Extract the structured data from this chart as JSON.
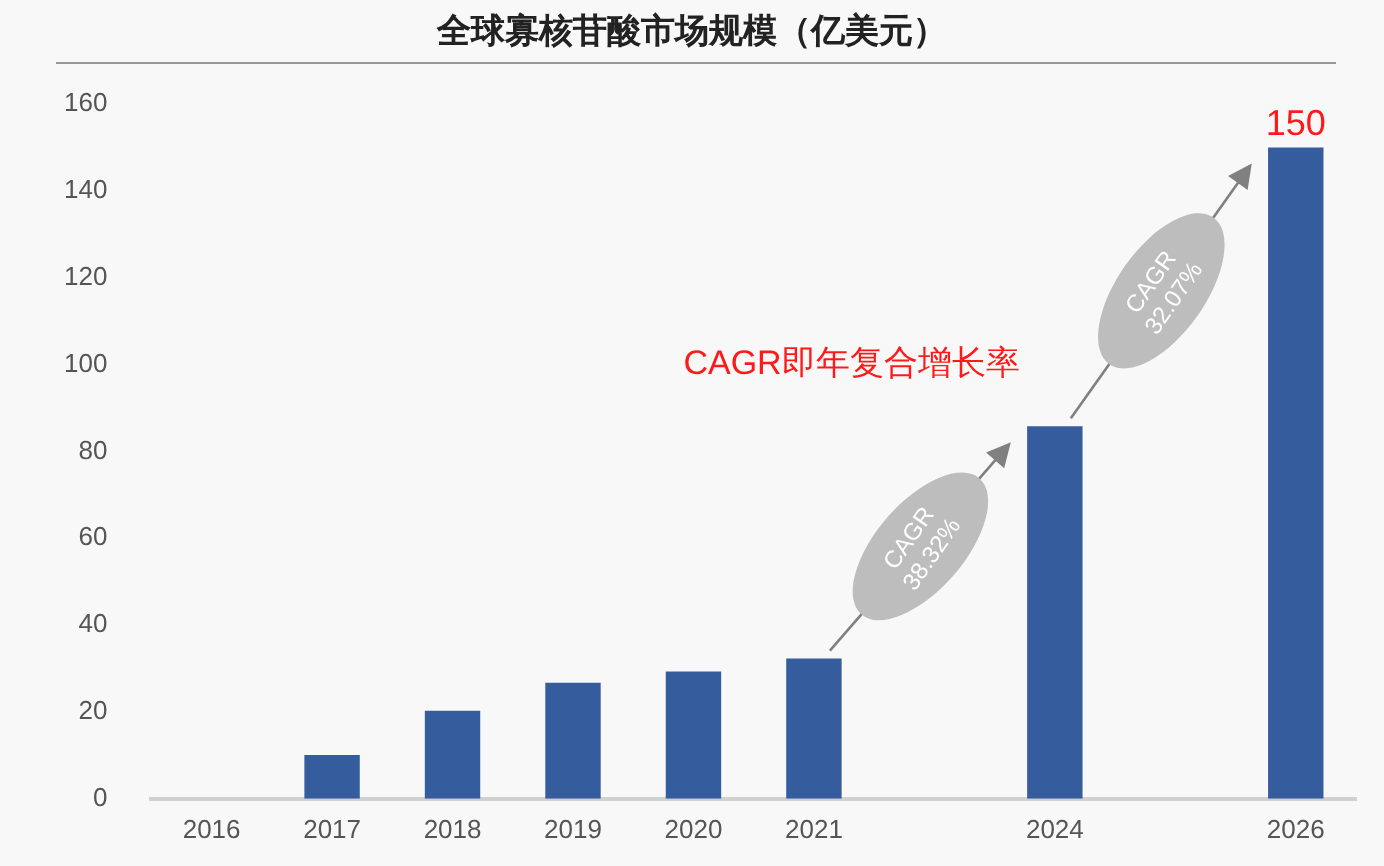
{
  "chart_data": {
    "type": "bar",
    "title": "全球寡核苷酸市场规模（亿美元）",
    "categories": [
      "2016",
      "2017",
      "2018",
      "2019",
      "2020",
      "2021",
      null,
      "2024",
      null,
      "2026"
    ],
    "values": [
      0,
      10.1,
      20.3,
      26.7,
      29.3,
      32.3,
      null,
      85.8,
      null,
      150
    ],
    "value_labels": [
      null,
      null,
      null,
      null,
      null,
      null,
      null,
      null,
      null,
      "150"
    ],
    "color": "#355c9c",
    "ylim": [
      0,
      160
    ],
    "yticks": [
      0,
      20,
      40,
      60,
      80,
      100,
      120,
      140,
      160
    ],
    "grid": false,
    "legend": false,
    "annotations": [
      "CAGR即年复合增长率",
      "CAGR 38.32%",
      "CAGR 32.07%"
    ]
  }
}
